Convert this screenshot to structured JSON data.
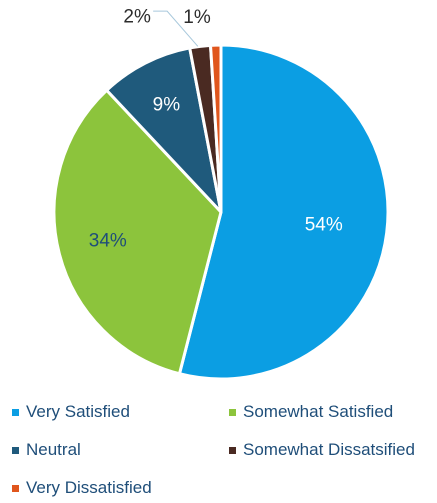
{
  "chart_data": {
    "type": "pie",
    "categories": [
      "Very Satisfied",
      "Somewhat Satisfied",
      "Neutral",
      "Somewhat Dissatsified",
      "Very Dissatisfied"
    ],
    "values": [
      54,
      34,
      9,
      2,
      1
    ],
    "labels": [
      "54%",
      "34%",
      "9%",
      "2%",
      "1%"
    ],
    "colors": [
      "#0b9ee3",
      "#8cc43c",
      "#1f5a7c",
      "#4a2a22",
      "#e0561d"
    ],
    "label_colors": [
      "#ffffff",
      "#1f4e79",
      "#ffffff",
      "#2b2b2b",
      "#2b2b2b"
    ],
    "start_angle_deg": 0,
    "direction": "clockwise",
    "legend_position": "bottom"
  }
}
